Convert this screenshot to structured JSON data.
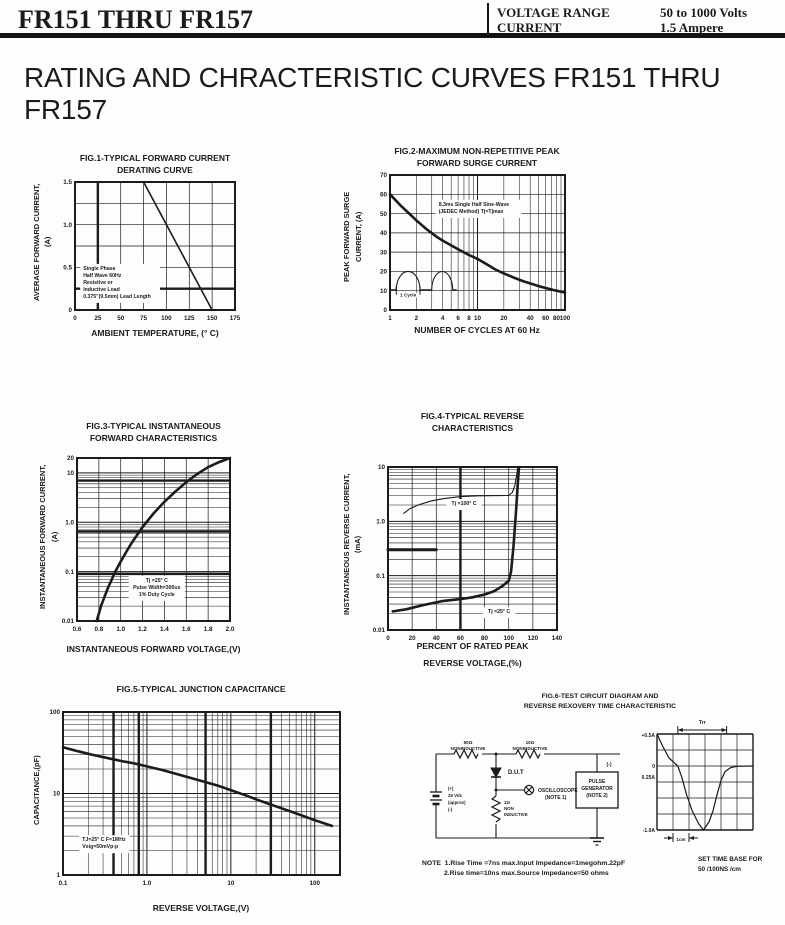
{
  "page": {
    "bg": "#fdfdfd",
    "ink": "#1b1b1b"
  },
  "header": {
    "part_range": "FR151 THRU FR157",
    "specs": [
      {
        "label": "VOLTAGE RANGE",
        "value": "50 to 1000 Volts"
      },
      {
        "label": "CURRENT",
        "value": "1.5 Ampere"
      }
    ]
  },
  "main_title": "RATING AND CHRACTERISTIC CURVES FR151 THRU  FR157",
  "chart_data": [
    {
      "fig": "FIG.1",
      "type": "line",
      "title": [
        "FIG.1-TYPICAL FORWARD CURRENT",
        "DERATING CURVE"
      ],
      "xlabel": "AMBIENT TEMPERATURE, (° C)",
      "ylabel": [
        "AVERAGE FORWARD CURRENT,",
        "(A)"
      ],
      "x": {
        "scale": "linear",
        "min": 0,
        "max": 175,
        "step": 25,
        "ticks": [
          0,
          25,
          50,
          75,
          100,
          125,
          150,
          175
        ],
        "tick_labels": [
          "0",
          "25",
          "50",
          "75",
          "100",
          "125",
          "150",
          "175"
        ],
        "thick": [
          25
        ]
      },
      "y": {
        "scale": "linear",
        "min": 0,
        "max": 1.5,
        "step": 0.25,
        "ticks": [
          0,
          0.5,
          1,
          1.5
        ],
        "tick_labels": [
          "0",
          "0.5",
          "1.0",
          "1.5"
        ],
        "thick": [
          0.25
        ]
      },
      "series": [
        {
          "name": "derating-line",
          "width": 1.6,
          "points": [
            [
              75,
              1.5
            ],
            [
              150,
              0
            ]
          ]
        }
      ],
      "annotations": [
        {
          "x": 9,
          "y": 0.47,
          "anchor": "start",
          "boxed": true,
          "lines": [
            "Single Phase",
            "Half Wave 60Hz",
            "Resistive or",
            "Inductive Load",
            "0.375\"(9.5mm) Lead Length"
          ]
        }
      ]
    },
    {
      "fig": "FIG.2",
      "type": "line",
      "title": [
        "FIG.2-MAXIMUM NON-REPETITIVE PEAK",
        "FORWARD SURGE CURRENT"
      ],
      "xlabel": "NUMBER OF CYCLES AT 60 Hz",
      "ylabel": [
        "PEAK FORWARD SURGE",
        "CURRENT, (A)"
      ],
      "x": {
        "scale": "log",
        "min": 1,
        "max": 100,
        "ticks": [
          1,
          2,
          4,
          6,
          8,
          10,
          20,
          40,
          60,
          80,
          100
        ],
        "tick_labels": [
          "1",
          "2",
          "4",
          "6",
          "8",
          "10",
          "20",
          "40",
          "60",
          "80",
          "100"
        ]
      },
      "y": {
        "scale": "linear",
        "min": 0,
        "max": 70,
        "step": 10,
        "ticks": [
          0,
          10,
          20,
          30,
          40,
          50,
          60,
          70
        ],
        "tick_labels": [
          "0",
          "10",
          "20",
          "30",
          "40",
          "50",
          "60",
          "70"
        ]
      },
      "series": [
        {
          "name": "surge-current-curve",
          "width": 2.6,
          "points": [
            [
              1,
              60
            ],
            [
              1.3,
              54.5
            ],
            [
              1.7,
              49.5
            ],
            [
              2,
              46.5
            ],
            [
              2.6,
              42
            ],
            [
              3.4,
              38
            ],
            [
              4,
              36
            ],
            [
              5,
              33.5
            ],
            [
              6,
              31.5
            ],
            [
              8,
              28.5
            ],
            [
              10,
              26.5
            ],
            [
              13,
              23.5
            ],
            [
              16,
              21
            ],
            [
              20,
              19
            ],
            [
              26,
              16.8
            ],
            [
              34,
              14.8
            ],
            [
              40,
              13.8
            ],
            [
              50,
              12.4
            ],
            [
              60,
              11.4
            ],
            [
              80,
              10
            ],
            [
              100,
              9
            ]
          ]
        }
      ],
      "annotations": [
        {
          "x": 3.6,
          "y": 54,
          "anchor": "start",
          "boxed": true,
          "lines": [
            "8.3ms Single Half Sine-Wave",
            "(JEDEC Method)  Tj=Tjmax"
          ]
        }
      ],
      "sketch_label": "1 Cycle"
    },
    {
      "fig": "FIG.3",
      "type": "line",
      "title": [
        "FIG.3-TYPICAL INSTANTANEOUS",
        "FORWARD CHARACTERISTICS"
      ],
      "xlabel": "INSTANTANEOUS FORWARD VOLTAGE,(V)",
      "ylabel": [
        "INSTANTANEOUS FORWARD CURRENT,",
        "(A)"
      ],
      "x": {
        "scale": "linear",
        "min": 0.6,
        "max": 2.0,
        "step": 0.2,
        "ticks": [
          0.6,
          0.8,
          1.0,
          1.2,
          1.4,
          1.6,
          1.8,
          2.0
        ],
        "tick_labels": [
          "0.6",
          "0.8",
          "1.0",
          "1.2",
          "1.4",
          "1.6",
          "1.8",
          "2.0"
        ]
      },
      "y": {
        "scale": "log",
        "min": 0.01,
        "max": 20,
        "ticks": [
          20,
          10,
          1,
          0.1,
          0.01
        ],
        "tick_labels": [
          "20",
          "10",
          "1.0",
          "0.1",
          "0.01"
        ],
        "thick": [
          0.09,
          0.65,
          7
        ]
      },
      "series": [
        {
          "name": "forward-vi-curve",
          "width": 2.6,
          "points": [
            [
              0.78,
              0.01
            ],
            [
              0.82,
              0.02
            ],
            [
              0.88,
              0.045
            ],
            [
              0.95,
              0.1
            ],
            [
              1.0,
              0.16
            ],
            [
              1.05,
              0.25
            ],
            [
              1.1,
              0.38
            ],
            [
              1.2,
              0.8
            ],
            [
              1.3,
              1.5
            ],
            [
              1.4,
              2.6
            ],
            [
              1.5,
              4.2
            ],
            [
              1.6,
              6.5
            ],
            [
              1.7,
              9.5
            ],
            [
              1.8,
              13
            ],
            [
              1.9,
              16.5
            ],
            [
              2.0,
              20
            ]
          ]
        }
      ],
      "annotations": [
        {
          "x": 1.33,
          "y": 0.062,
          "anchor": "middle",
          "boxed": true,
          "lines": [
            "Tj =25° C",
            "Pulse Width=300us",
            "1% Duty Cycle"
          ]
        }
      ]
    },
    {
      "fig": "FIG.4",
      "type": "line",
      "title": [
        "FIG.4-TYPICAL REVERSE",
        "CHARACTERISTICS"
      ],
      "xlabel": [
        "PERCENT OF RATED PEAK",
        "REVERSE VOLTAGE,(%)"
      ],
      "ylabel": [
        "INSTANTANEOUS REVERSE CURRENT,",
        "(mA)"
      ],
      "x": {
        "scale": "linear",
        "min": 0,
        "max": 140,
        "step": 20,
        "ticks": [
          0,
          20,
          40,
          60,
          80,
          100,
          120,
          140
        ],
        "tick_labels": [
          "0",
          "20",
          "40",
          "60",
          "80",
          "100",
          "120",
          "140"
        ],
        "thick": [
          60
        ]
      },
      "y": {
        "scale": "log",
        "min": 0.01,
        "max": 10,
        "ticks": [
          10,
          1,
          0.1,
          0.01
        ],
        "tick_labels": [
          "10",
          "1.0",
          "0.1",
          "0.01"
        ]
      },
      "series": [
        {
          "name": "tj-100c-curve",
          "width": 1.1,
          "points": [
            [
              13,
              1.4
            ],
            [
              18,
              1.7
            ],
            [
              25,
              2.0
            ],
            [
              35,
              2.35
            ],
            [
              45,
              2.6
            ],
            [
              60,
              2.85
            ],
            [
              75,
              2.95
            ],
            [
              100,
              3.0
            ],
            [
              103,
              3.4
            ],
            [
              105,
              4.5
            ],
            [
              106.5,
              7
            ],
            [
              107.5,
              10
            ]
          ]
        },
        {
          "name": "tj-25c-curve",
          "width": 2.6,
          "points": [
            [
              4,
              0.022
            ],
            [
              15,
              0.024
            ],
            [
              30,
              0.029
            ],
            [
              45,
              0.034
            ],
            [
              60,
              0.037
            ],
            [
              70,
              0.04
            ],
            [
              80,
              0.045
            ],
            [
              88,
              0.052
            ],
            [
              95,
              0.065
            ],
            [
              100,
              0.08
            ],
            [
              102,
              0.12
            ],
            [
              104,
              0.35
            ],
            [
              106,
              1.5
            ],
            [
              107.5,
              5
            ],
            [
              108.5,
              10
            ]
          ]
        },
        {
          "name": "scan-artifact-line",
          "width": 3,
          "points": [
            [
              0,
              0.3
            ],
            [
              40,
              0.3
            ]
          ]
        }
      ],
      "annotations": [
        {
          "x": 63,
          "y": 2.0,
          "anchor": "middle",
          "boxed": true,
          "text": "Tj =100° C"
        },
        {
          "x": 92,
          "y": 0.0205,
          "anchor": "middle",
          "boxed": true,
          "text": "Tj =25° C"
        }
      ]
    },
    {
      "fig": "FIG.5",
      "type": "line",
      "title": [
        "FIG.5-TYPICAL JUNCTION CAPACITANCE"
      ],
      "xlabel": "REVERSE VOLTAGE,(V)",
      "ylabel": [
        "CAPACITANCE,(pF)"
      ],
      "x": {
        "scale": "log",
        "min": 0.1,
        "max": 200,
        "ticks": [
          0.1,
          1,
          10,
          100
        ],
        "tick_labels": [
          "0.1",
          "1.0",
          "10",
          "100"
        ],
        "thick": [
          0.4,
          0.8,
          5,
          30
        ]
      },
      "y": {
        "scale": "log",
        "min": 1,
        "max": 100,
        "ticks": [
          1,
          10,
          100
        ],
        "tick_labels": [
          "1",
          "10",
          "100"
        ]
      },
      "series": [
        {
          "name": "junction-capacitance-curve",
          "width": 2.6,
          "points": [
            [
              0.1,
              37
            ],
            [
              0.15,
              33
            ],
            [
              0.22,
              30
            ],
            [
              0.35,
              27
            ],
            [
              0.5,
              25
            ],
            [
              0.7,
              23.5
            ],
            [
              1,
              21.5
            ],
            [
              1.5,
              19.5
            ],
            [
              2,
              18
            ],
            [
              3,
              16
            ],
            [
              5,
              13.8
            ],
            [
              7,
              12.5
            ],
            [
              10,
              11
            ],
            [
              15,
              9.5
            ],
            [
              20,
              8.5
            ],
            [
              30,
              7.3
            ],
            [
              40,
              6.6
            ],
            [
              60,
              5.7
            ],
            [
              100,
              4.7
            ],
            [
              160,
              4.0
            ]
          ]
        }
      ],
      "annotations": [
        {
          "x": 0.17,
          "y": 2.6,
          "anchor": "start",
          "boxed": true,
          "lines": [
            "TJ=25° C F=1MHz",
            "Vsig=50mVp-p"
          ]
        }
      ]
    },
    {
      "fig": "FIG.6",
      "type": "schematic",
      "title": [
        "FIG.6-TEST CIRCUIT DIAGRAM AND",
        "REVERSE REXOVERY TIME CHARACTERISTIC"
      ],
      "circuit": {
        "r1": [
          "50Ω",
          "NONINDUCTIVE"
        ],
        "r2": [
          "10Ω",
          "NONINDUCTIVE"
        ],
        "battery": [
          "(+)",
          "25 Vdc",
          "(approx)",
          "(-)"
        ],
        "dut": "D.U.T",
        "pulse_generator": [
          "PULSE",
          "GENERATOR",
          "(NOTE 2)"
        ],
        "pg_terminal": "(-)",
        "r3": [
          "1Ω",
          "NON",
          "INDUCTIVE"
        ],
        "oscilloscope": [
          "OSCILLOSCOPE",
          "(NOTE 1)"
        ]
      },
      "waveform": {
        "y_labels": [
          "+0.5A",
          "0",
          "0.25A",
          "-1.0A"
        ],
        "trr_label": "Trr",
        "base_label": "1cm",
        "caption": [
          "SET TIME BASE FOR",
          "50 /100NS /cm"
        ],
        "points_cells": [
          [
            0,
            0
          ],
          [
            0.35,
            0.75
          ],
          [
            0.75,
            1.5
          ],
          [
            1.3,
            2.0
          ],
          [
            1.55,
            2.7
          ],
          [
            1.85,
            3.8
          ],
          [
            2.2,
            4.8
          ],
          [
            2.6,
            5.6
          ],
          [
            2.9,
            6.0
          ],
          [
            3.25,
            5.5
          ],
          [
            3.5,
            4.8
          ],
          [
            3.75,
            3.8
          ],
          [
            4.0,
            2.9
          ],
          [
            4.25,
            2.35
          ],
          [
            4.6,
            2.1
          ],
          [
            5.0,
            2.02
          ],
          [
            6.0,
            2.0
          ]
        ]
      },
      "notes": [
        "NOTE  1.Rise Time =7ns max.Input Impedance=1megohm.22pF",
        "2.Rise time=10ns max.Source Impedance=50 ohms"
      ]
    }
  ]
}
